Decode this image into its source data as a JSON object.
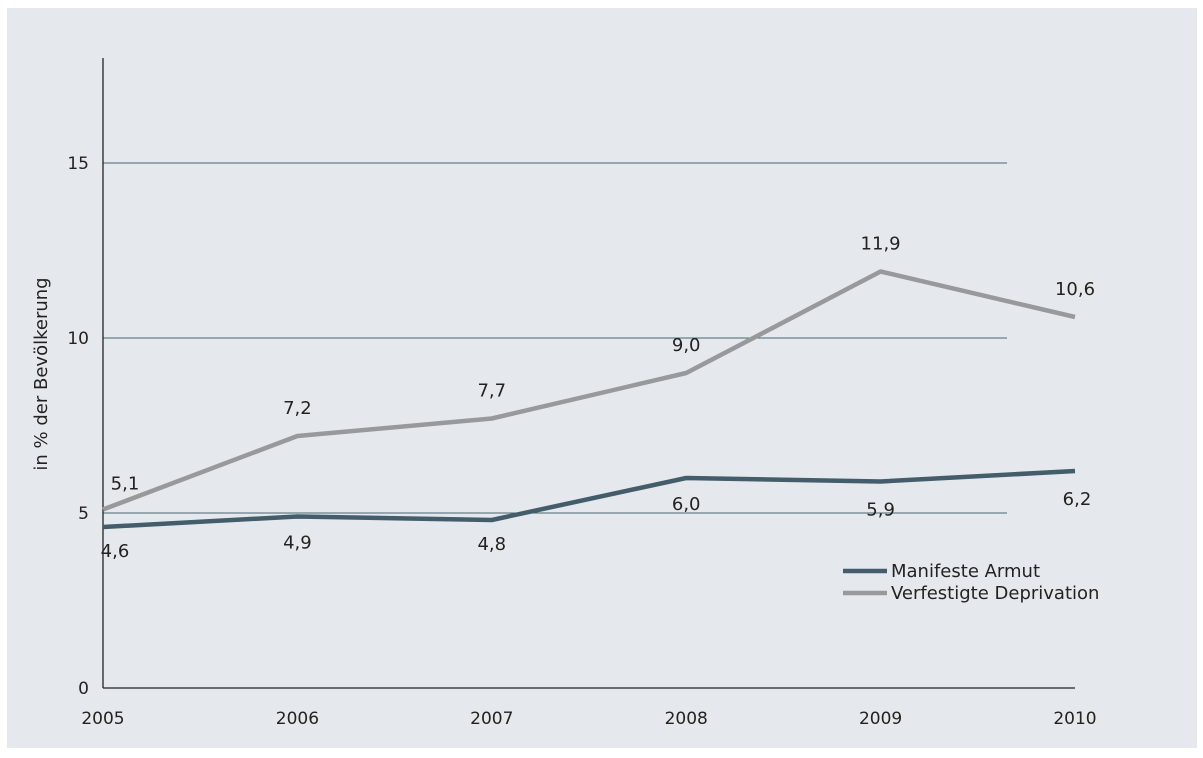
{
  "chart_data": {
    "type": "line",
    "x": [
      "2005",
      "2006",
      "2007",
      "2008",
      "2009",
      "2010"
    ],
    "ylabel": "in % der Bevölkerung",
    "xlabel": "",
    "ylim": [
      0,
      18
    ],
    "y_ticks": [
      0,
      5,
      10,
      15
    ],
    "y_tick_labels": [
      "0",
      "5",
      "10",
      "15"
    ],
    "gridlines_at": [
      5,
      10,
      15
    ],
    "grid": true,
    "legend_position": "right",
    "series": [
      {
        "name": "Manifeste Armut",
        "color": "#445d6a",
        "values": [
          4.6,
          4.9,
          4.8,
          6.0,
          5.9,
          6.2
        ],
        "value_labels": [
          "4,6",
          "4,9",
          "4,8",
          "6,0",
          "5,9",
          "6,2"
        ]
      },
      {
        "name": "Verfestigte Deprivation",
        "color": "#98999c",
        "values": [
          5.1,
          7.2,
          7.7,
          9.0,
          11.9,
          10.6
        ],
        "value_labels": [
          "5,1",
          "7,2",
          "7,7",
          "9,0",
          "11,9",
          "10,6"
        ]
      }
    ],
    "colors": {
      "background": "#e5e9ed",
      "gridline": "#4a6470",
      "axis": "#222222"
    }
  }
}
